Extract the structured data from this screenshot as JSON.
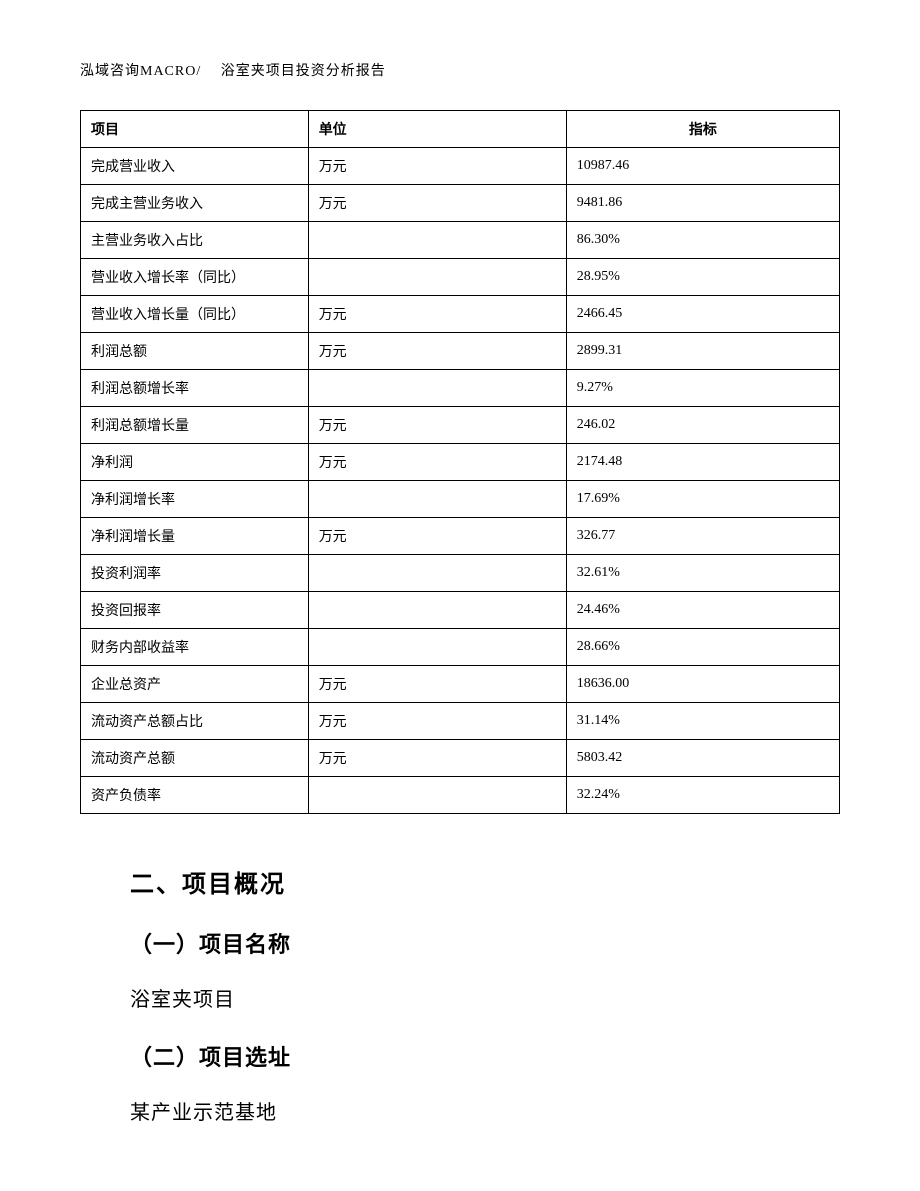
{
  "header": {
    "text": "泓域咨询MACRO/　 浴室夹项目投资分析报告"
  },
  "table": {
    "type": "table",
    "columns": [
      {
        "label": "项目",
        "align": "left"
      },
      {
        "label": "单位",
        "align": "left"
      },
      {
        "label": "指标",
        "align": "center"
      }
    ],
    "rows": [
      [
        "完成营业收入",
        "万元",
        "10987.46"
      ],
      [
        "完成主营业务收入",
        "万元",
        "9481.86"
      ],
      [
        "主营业务收入占比",
        "",
        "86.30%"
      ],
      [
        "营业收入增长率（同比）",
        "",
        "28.95%"
      ],
      [
        "营业收入增长量（同比）",
        "万元",
        "2466.45"
      ],
      [
        "利润总额",
        "万元",
        "2899.31"
      ],
      [
        "利润总额增长率",
        "",
        "9.27%"
      ],
      [
        "利润总额增长量",
        "万元",
        "246.02"
      ],
      [
        "净利润",
        "万元",
        "2174.48"
      ],
      [
        "净利润增长率",
        "",
        "17.69%"
      ],
      [
        "净利润增长量",
        "万元",
        "326.77"
      ],
      [
        "投资利润率",
        "",
        "32.61%"
      ],
      [
        "投资回报率",
        "",
        "24.46%"
      ],
      [
        "财务内部收益率",
        "",
        "28.66%"
      ],
      [
        "企业总资产",
        "万元",
        "18636.00"
      ],
      [
        "流动资产总额占比",
        "万元",
        "31.14%"
      ],
      [
        "流动资产总额",
        "万元",
        "5803.42"
      ],
      [
        "资产负债率",
        "",
        "32.24%"
      ]
    ],
    "border_color": "#000000",
    "background_color": "#ffffff",
    "font_size": 14
  },
  "sections": {
    "heading2": "二、项目概况",
    "sub1": {
      "title": "（一）项目名称",
      "content": "浴室夹项目"
    },
    "sub2": {
      "title": "（二）项目选址",
      "content": "某产业示范基地"
    }
  }
}
